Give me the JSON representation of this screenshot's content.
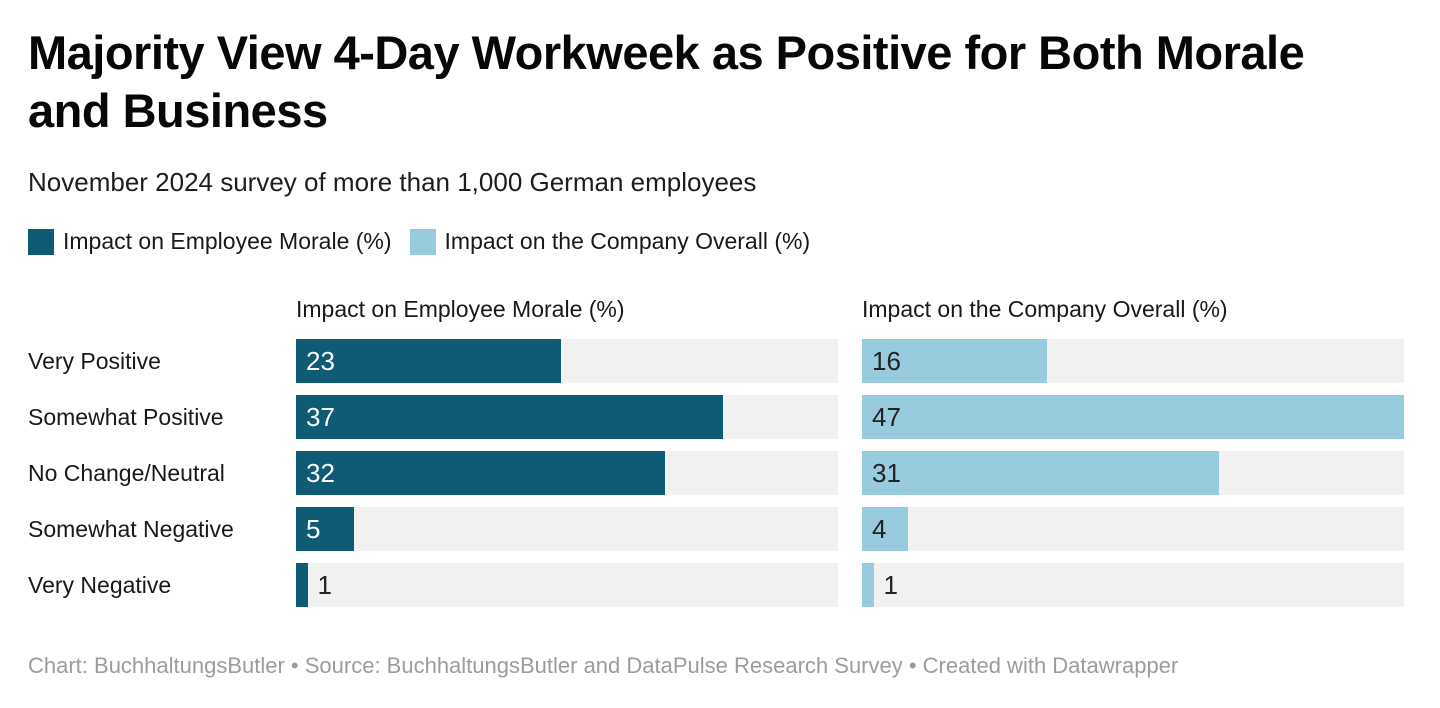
{
  "header": {
    "title": "Majority View 4-Day Workweek as Positive for Both Morale\nand Business",
    "subtitle": "November 2024 survey of more than 1,000 German employees"
  },
  "chart_data": {
    "type": "bar",
    "layout": "split-horizontal-bars",
    "title": "Majority View 4-Day Workweek as Positive for Both Morale and Business",
    "subtitle": "November 2024 survey of more than 1,000 German employees",
    "categories": [
      "Very Positive",
      "Somewhat Positive",
      "No Change/Neutral",
      "Somewhat Negative",
      "Very Negative"
    ],
    "series": [
      {
        "name": "Impact on Employee Morale (%)",
        "values": [
          23,
          37,
          32,
          5,
          1
        ],
        "color": "#0f5b74",
        "inside_label_color": "#ffffff"
      },
      {
        "name": "Impact on the Company Overall (%)",
        "values": [
          16,
          47,
          31,
          4,
          1
        ],
        "color": "#98cbde",
        "inside_label_color": "#222222"
      }
    ],
    "xmax": 47,
    "xlabel": "",
    "ylabel": "",
    "grid": false,
    "value_labels": "shown at bar start",
    "track_color": "#f1f1f1",
    "legend_position": "top-left"
  },
  "footer": {
    "text": "Chart: BuchhaltungsButler • Source: BuchhaltungsButler and DataPulse Research Survey • Created with Datawrapper"
  }
}
